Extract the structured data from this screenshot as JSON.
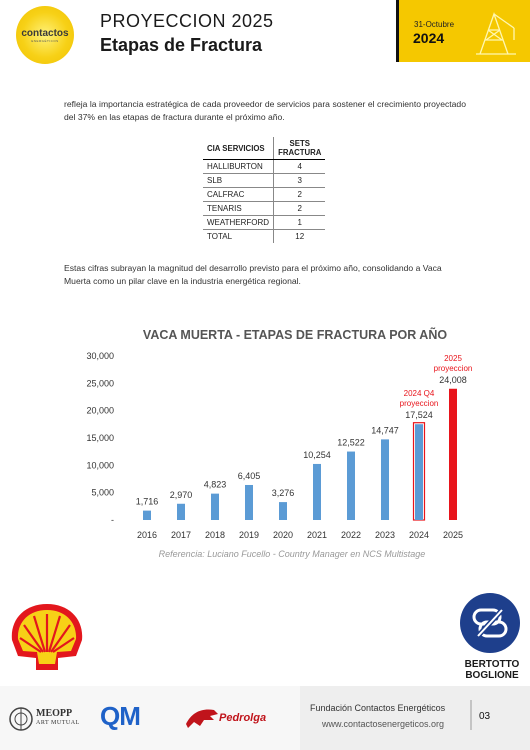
{
  "header": {
    "logo_text": "contactos",
    "logo_sub": "ENERGÉTICOS",
    "title_line1": "PROYECCION 2025",
    "title_line2": "Etapas de Fractura",
    "date_label": "31-Octubre",
    "year": "2024"
  },
  "body": {
    "paragraph1": "refleja la importancia estratégica de cada proveedor de servicios para sostener el crecimiento proyectado del 37% en las etapas de fractura durante el próximo año.",
    "paragraph2": "Estas cifras subrayan la magnitud del desarrollo previsto para el próximo año, consolidando a Vaca Muerta como un pilar clave en la industria energética regional."
  },
  "table": {
    "headers": [
      "CIA SERVICIOS",
      "SETS FRACTURA"
    ],
    "rows": [
      [
        "HALLIBURTON",
        "4"
      ],
      [
        "SLB",
        "3"
      ],
      [
        "CALFRAC",
        "2"
      ],
      [
        "TENARIS",
        "2"
      ],
      [
        "WEATHERFORD",
        "1"
      ],
      [
        "TOTAL",
        "12"
      ]
    ]
  },
  "chart_data": {
    "type": "bar",
    "title": "VACA MUERTA - ETAPAS DE FRACTURA POR AÑO",
    "categories": [
      "2016",
      "2017",
      "2018",
      "2019",
      "2020",
      "2021",
      "2022",
      "2023",
      "2024",
      "2025"
    ],
    "values": [
      1716,
      2970,
      4823,
      6405,
      3276,
      10254,
      12522,
      14747,
      17524,
      24008
    ],
    "value_labels": [
      "1,716",
      "2,970",
      "4,823",
      "6,405",
      "3,276",
      "10,254",
      "12,522",
      "14,747",
      "17,524",
      "24,008"
    ],
    "y_ticks": [
      "-",
      "5,000",
      "10,000",
      "15,000",
      "20,000",
      "25,000",
      "30,000"
    ],
    "ylim": [
      0,
      30000
    ],
    "annotations": [
      {
        "category": "2024",
        "text": [
          "2024 Q4",
          "proyeccion"
        ]
      },
      {
        "category": "2025",
        "text": [
          "2025",
          "proyeccion"
        ]
      }
    ],
    "reference": "Referencia: Luciano Fucello - Country Manager en NCS Multistage",
    "colors": {
      "bar": "#5b9bd5",
      "highlight": "#e8141b",
      "outline": "#e8141b"
    }
  },
  "footer": {
    "meopp": "MEOPP",
    "meopp_sub": "ART MUTUAL",
    "qm": "QM",
    "pedrolga": "Pedrolga",
    "bertotto_line1": "BERTOTTO",
    "bertotto_line2": "BOGLIONE",
    "org": "Fundación Contactos Energéticos",
    "website": "www.contactosenergeticos.org",
    "page": "03"
  }
}
